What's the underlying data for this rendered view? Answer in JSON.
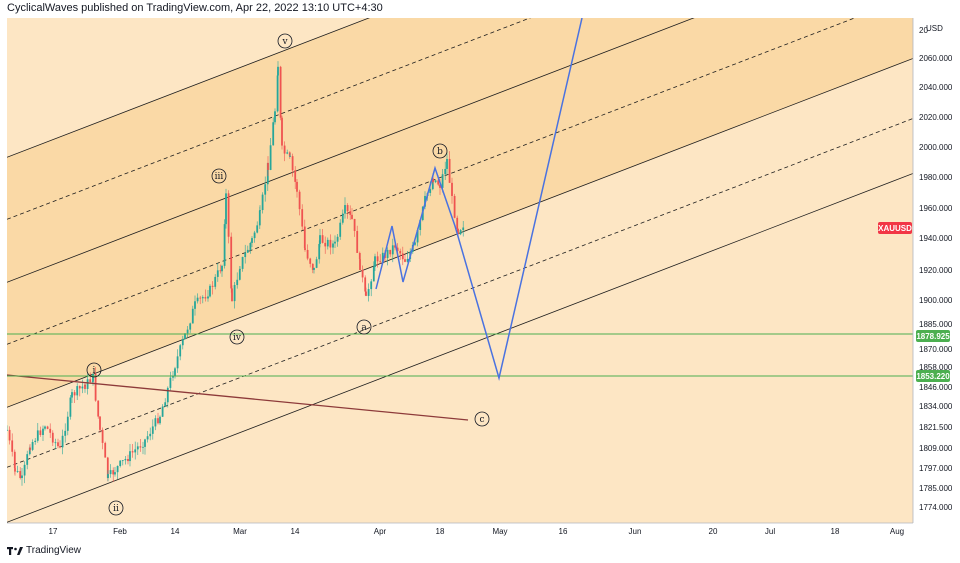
{
  "header": {
    "title": "CyclicalWaves published on TradingView.com, Apr 22, 2022 13:10 UTC+4:30"
  },
  "branding": {
    "logo_icon": "tradingview-logo-icon",
    "text": "TradingView"
  },
  "colors": {
    "channel_fill_inner": "#fad9a6",
    "channel_fill_outer": "#fde6c4",
    "up_candle": "#26a69a",
    "down_candle": "#ef5350",
    "wave_path": "#4a72e0",
    "support_line": "#4caf50",
    "trend_line": "#8d3a3a",
    "price_badge": "#f23645",
    "level_badge": "#4caf50"
  },
  "chart_data": {
    "type": "candlestick",
    "symbol": "XAUUSD",
    "currency_label": "USD",
    "y_ticks": [
      "2060.000",
      "2040.000",
      "2020.000",
      "2000.000",
      "1980.000",
      "1960.000",
      "1940.000",
      "1920.000",
      "1900.000",
      "1885.000",
      "1870.000",
      "1858.000",
      "1846.000",
      "1834.000",
      "1821.500",
      "1809.000",
      "1797.000",
      "1785.000",
      "1774.000"
    ],
    "y_top_clipped": "20",
    "x_ticks": [
      "17",
      "Feb",
      "14",
      "Mar",
      "14",
      "Apr",
      "18",
      "May",
      "16",
      "Jun",
      "20",
      "Jul",
      "18",
      "Aug"
    ],
    "price_badge": {
      "label": "XAUUSD"
    },
    "horizontal_levels": [
      {
        "value": "1878.925"
      },
      {
        "value": "1853.220"
      }
    ],
    "wave_labels": [
      "i",
      "ii",
      "iii",
      "iv",
      "v",
      "a",
      "b",
      "c"
    ]
  }
}
